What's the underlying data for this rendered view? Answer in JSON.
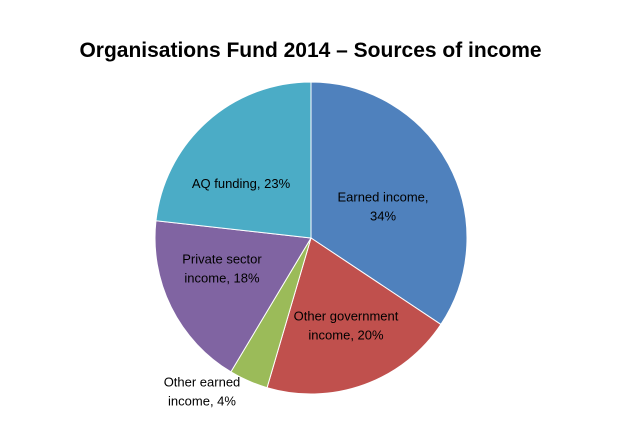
{
  "chart_data": {
    "type": "pie",
    "title": "Organisations Fund 2014 – Sources of income",
    "slices": [
      {
        "name": "Earned income",
        "value": 34,
        "color": "#4F81BD",
        "label_lines": [
          "Earned income,",
          "34%"
        ]
      },
      {
        "name": "Other government income",
        "value": 20,
        "color": "#C0504D",
        "label_lines": [
          "Other government",
          "income, 20%"
        ]
      },
      {
        "name": "Other earned income",
        "value": 4,
        "color": "#9BBB59",
        "label_lines": [
          "Other earned",
          "income, 4%"
        ]
      },
      {
        "name": "Private sector income",
        "value": 18,
        "color": "#8064A2",
        "label_lines": [
          "Private sector",
          "income, 18%"
        ]
      },
      {
        "name": "AQ funding",
        "value": 23,
        "color": "#4BACC6",
        "label_lines": [
          "AQ funding, 23%"
        ]
      }
    ],
    "legend": "none",
    "start_angle": "12 o'clock, clockwise"
  }
}
